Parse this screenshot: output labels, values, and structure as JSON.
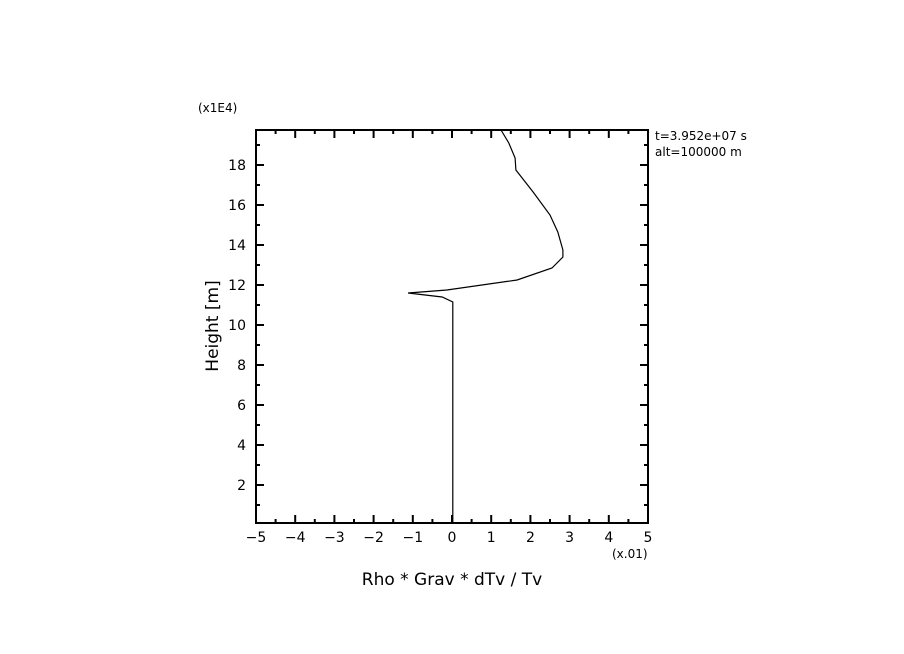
{
  "chart_data": {
    "type": "line",
    "xlabel": "Rho * Grav * dTv / Tv",
    "ylabel": "Height [m]",
    "x_multiplier": "(x.01)",
    "y_multiplier": "(x1E4)",
    "xlim": [
      -5,
      5
    ],
    "ylim": [
      0.1,
      19.75
    ],
    "x_ticks": [
      -5,
      -4,
      -3,
      -2,
      -1,
      0,
      1,
      2,
      3,
      4,
      5
    ],
    "y_ticks": [
      2,
      4,
      6,
      8,
      10,
      12,
      14,
      16,
      18
    ],
    "grid": false,
    "annotations": [
      "t=3.952e+07 s",
      "alt=100000 m"
    ],
    "series": [
      {
        "color": "#000000",
        "points": [
          [
            0.02,
            0.1
          ],
          [
            0.02,
            5
          ],
          [
            0.02,
            10
          ],
          [
            0.02,
            11.15
          ],
          [
            -0.25,
            11.4
          ],
          [
            -1.12,
            11.6
          ],
          [
            -0.13,
            11.75
          ],
          [
            1.66,
            12.25
          ],
          [
            2.55,
            12.85
          ],
          [
            2.83,
            13.4
          ],
          [
            2.83,
            13.75
          ],
          [
            2.7,
            14.65
          ],
          [
            2.5,
            15.5
          ],
          [
            2.07,
            16.65
          ],
          [
            1.63,
            17.75
          ],
          [
            1.61,
            18.35
          ],
          [
            1.45,
            19.1
          ],
          [
            1.25,
            19.75
          ]
        ]
      }
    ]
  }
}
